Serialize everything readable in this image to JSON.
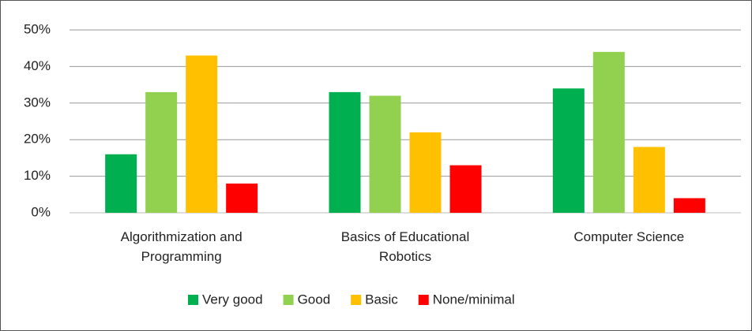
{
  "chart_data": {
    "type": "bar",
    "categories": [
      "Algorithmization and Programming",
      "Basics of Educational Robotics",
      "Computer Science"
    ],
    "series": [
      {
        "name": "Very good",
        "color": "#00b050",
        "values": [
          16,
          33,
          34
        ]
      },
      {
        "name": "Good",
        "color": "#92d050",
        "values": [
          33,
          32,
          44
        ]
      },
      {
        "name": "Basic",
        "color": "#ffc000",
        "values": [
          43,
          22,
          18
        ]
      },
      {
        "name": "None/minimal",
        "color": "#ff0000",
        "values": [
          8,
          13,
          4
        ]
      }
    ],
    "ylim": [
      0,
      50
    ],
    "yticks": [
      {
        "value": 0,
        "label": "0%"
      },
      {
        "value": 10,
        "label": "10%"
      },
      {
        "value": 20,
        "label": "20%"
      },
      {
        "value": 30,
        "label": "30%"
      },
      {
        "value": 40,
        "label": "40%"
      },
      {
        "value": 50,
        "label": "50%"
      }
    ],
    "grid": true,
    "legend": "bottom"
  }
}
